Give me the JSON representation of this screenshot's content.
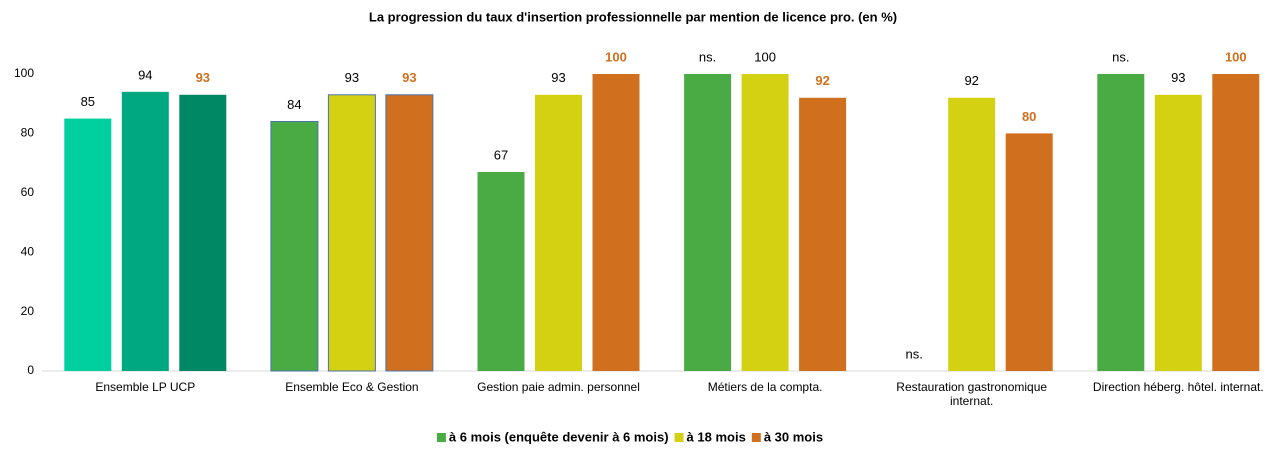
{
  "chart_data": {
    "type": "bar",
    "title": "La progression du taux d'insertion professionnelle par mention de licence pro. (en %)",
    "categories": [
      "Ensemble LP UCP",
      "Ensemble Eco & Gestion",
      "Gestion paie admin. personnel",
      "Métiers de la compta.",
      "Restauration gastronomique internat.",
      "Direction héberg. hôtel. internat."
    ],
    "series": [
      {
        "name": "à 6 mois (enquête devenir à 6 mois)",
        "color": "#4aab45",
        "values": [
          85,
          84,
          67,
          100,
          null,
          100
        ],
        "value_labels": [
          "85",
          "84",
          "67",
          "ns.",
          "ns.",
          "ns."
        ],
        "point_colors": [
          "#00d0a0",
          "#4aab45",
          "#4aab45",
          "#4aab45",
          "#4aab45",
          "#4aab45"
        ],
        "point_strokes": [
          null,
          "#4a72b0",
          null,
          null,
          null,
          null
        ],
        "label_color": "#000000",
        "label_bold": false
      },
      {
        "name": "à 18 mois",
        "color": "#d4d012",
        "values": [
          94,
          93,
          93,
          100,
          92,
          93
        ],
        "point_colors": [
          "#00a882",
          "#d4d012",
          "#d4d012",
          "#d4d012",
          "#d4d012",
          "#d4d012"
        ],
        "point_strokes": [
          null,
          "#4a72b0",
          null,
          null,
          null,
          null
        ],
        "label_color": "#000000",
        "label_bold": false
      },
      {
        "name": "à 30 mois",
        "color": "#d0701e",
        "values": [
          93,
          93,
          100,
          92,
          80,
          100
        ],
        "point_colors": [
          "#008864",
          "#d0701e",
          "#d0701e",
          "#d0701e",
          "#d0701e",
          "#d0701e"
        ],
        "point_strokes": [
          null,
          "#4a72b0",
          null,
          null,
          null,
          null
        ],
        "label_color": "#d0701e",
        "label_bold": true
      }
    ],
    "ylim": [
      0,
      100
    ],
    "yticks": [
      0,
      20,
      40,
      60,
      80,
      100
    ],
    "grid": false,
    "legend": "bottom"
  }
}
